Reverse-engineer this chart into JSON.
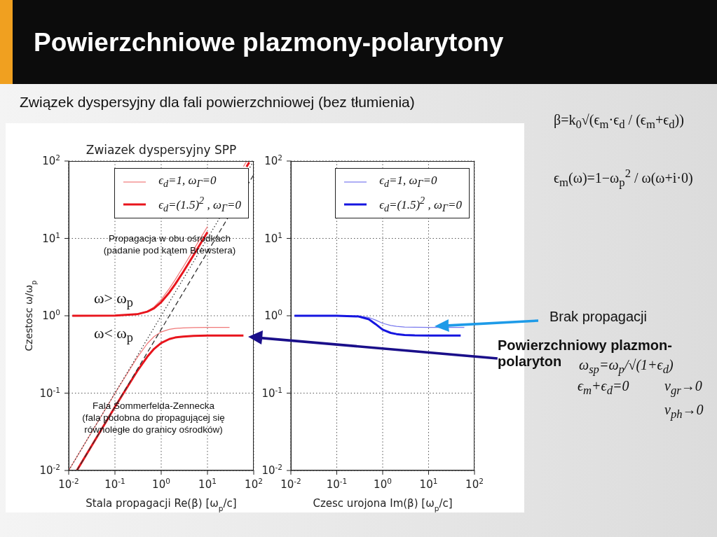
{
  "chart_data": [
    {
      "type": "line",
      "title": "Zwiazek dyspersyjny SPP",
      "xlabel": "Stala propagacji Re(β) [ω$_{p}$/c]",
      "ylabel": "Czestosc ω/ω$_{p}$",
      "log": "xy",
      "xlim": [
        0.01,
        100
      ],
      "ylim": [
        0.01,
        100
      ],
      "xticks": [
        {
          "value": 0.01,
          "label": "10$^{-2}$"
        },
        {
          "value": 0.1,
          "label": "10$^{-1}$"
        },
        {
          "value": 1,
          "label": "10$^{0}$"
        },
        {
          "value": 10,
          "label": "10$^{1}$"
        },
        {
          "value": 100,
          "label": "10$^{2}$"
        }
      ],
      "yticks": [
        {
          "value": 0.01,
          "label": "10$^{-2}$"
        },
        {
          "value": 0.1,
          "label": "10$^{-1}$"
        },
        {
          "value": 1,
          "label": "10$^{0}$"
        },
        {
          "value": 10,
          "label": "10$^{1}$"
        },
        {
          "value": 100,
          "label": "10$^{2}$"
        }
      ],
      "grid": true,
      "legend": "top right",
      "series": [
        {
          "name": "ϵ$_{d}$=1, ω$_{Γ}$=0",
          "color": "#f07878",
          "x": [
            0.012,
            0.1,
            0.3,
            0.5,
            0.7,
            1,
            1.5,
            2,
            3,
            5,
            10
          ],
          "values": [
            1.0,
            1.005,
            1.05,
            1.14,
            1.3,
            1.62,
            2.25,
            2.92,
            4.3,
            7.1,
            14.2
          ]
        },
        {
          "color": "#f07878",
          "x": [
            60,
            70
          ],
          "values": [
            84.8,
            99
          ]
        },
        {
          "color": "#f07878",
          "x": [
            0.01,
            0.1,
            0.3,
            0.5,
            0.7,
            1,
            1.5,
            2,
            3,
            5,
            10,
            30
          ],
          "values": [
            0.01,
            0.0995,
            0.286,
            0.437,
            0.538,
            0.618,
            0.667,
            0.685,
            0.697,
            0.704,
            0.706,
            0.707
          ]
        },
        {
          "name": "ϵ$_{d}$=(1.5)$^{2}$ , ω$_{Γ}$=0",
          "color": "#e8141c",
          "x": [
            0.012,
            0.1,
            0.3,
            0.5,
            0.7,
            1,
            1.5,
            2,
            3,
            5,
            10
          ],
          "values": [
            1.0,
            1.005,
            1.046,
            1.13,
            1.25,
            1.5,
            2.0,
            2.55,
            3.7,
            6.07,
            12.05
          ]
        },
        {
          "color": "#e8141c",
          "x": [
            70,
            80
          ],
          "values": [
            84.2,
            96.2
          ]
        },
        {
          "color": "#e8141c",
          "x": [
            0.015,
            0.1,
            0.3,
            0.5,
            0.7,
            1,
            1.5,
            2,
            3,
            5,
            10,
            60
          ],
          "values": [
            0.01,
            0.0663,
            0.191,
            0.295,
            0.373,
            0.445,
            0.5,
            0.523,
            0.539,
            0.55,
            0.554,
            0.555
          ]
        },
        {
          "color": "#333333",
          "line_style": "dotted",
          "x": [
            0.01,
            100
          ],
          "values": [
            0.01,
            100
          ]
        },
        {
          "color": "#333333",
          "line_style": "dashed",
          "x": [
            0.015,
            100
          ],
          "values": [
            0.01,
            66.7
          ]
        }
      ],
      "annotations": [
        "Powierzchniowe plazmony-polarytony",
        "Związek dyspersyjny dla fali powierzchniowej (bez tłumienia)",
        "ω> ω$_{p}$",
        "ω< ω$_{p}$",
        "Propagacja w obu ośrodkach\n(padanie pod kątem Brewstera)",
        "Fala Sommerfelda-Zennecka\n(fala podobna do propagującej się\nrównoległe do granicy ośrodków)"
      ]
    },
    {
      "type": "line",
      "xlabel": "Czesc urojona Im(β) [ω$_{p}$/c]",
      "log": "xy",
      "xlim": [
        0.01,
        100
      ],
      "ylim": [
        0.01,
        100
      ],
      "xticks": [
        {
          "value": 0.01,
          "label": "10$^{-2}$"
        },
        {
          "value": 0.1,
          "label": "10$^{-1}$"
        },
        {
          "value": 1,
          "label": "10$^{0}$"
        },
        {
          "value": 10,
          "label": "10$^{1}$"
        },
        {
          "value": 100,
          "label": "10$^{2}$"
        }
      ],
      "yticks": [
        {
          "value": 0.01,
          "label": "10$^{-2}$"
        },
        {
          "value": 0.1,
          "label": "10$^{-1}$"
        },
        {
          "value": 1,
          "label": "10$^{0}$"
        },
        {
          "value": 10,
          "label": "10$^{1}$"
        },
        {
          "value": 100,
          "label": "10$^{2}$"
        }
      ],
      "grid": true,
      "legend": "top right",
      "series": [
        {
          "name": "ϵ$_{d}$=1, ω$_{Γ}$=0",
          "color": "#7878ee",
          "x": [
            0.012,
            0.1,
            0.3,
            0.5,
            0.7,
            1,
            1.5,
            2,
            3,
            5,
            10,
            60
          ],
          "values": [
            1.0,
            1.0,
            0.99,
            0.95,
            0.88,
            0.8,
            0.75,
            0.73,
            0.715,
            0.71,
            0.707,
            0.707
          ]
        },
        {
          "name": "ϵ$_{d}$=(1.5)$^{2}$ , ω$_{Γ}$=0",
          "color": "#1515e0",
          "x": [
            0.012,
            0.1,
            0.3,
            0.5,
            0.7,
            1,
            1.5,
            2,
            3,
            5,
            10,
            50
          ],
          "values": [
            1.0,
            1.0,
            0.98,
            0.9,
            0.78,
            0.66,
            0.6,
            0.58,
            0.565,
            0.558,
            0.555,
            0.555
          ]
        }
      ],
      "annotations": [
        "β=k$_{0}$√(ϵ$_{m}$·ϵ$_{d}$ / (ϵ$_{m}$+ϵ$_{d}$))",
        "ϵ$_{m}$(ω)=1−ω$_{p}$$^{2}$ / ω(ω+i·0)",
        "Brak propagacji",
        "Powierzchniowy plazmon-polaryton",
        "ω$_{sp}$=ω$_{p}$/√(1+ϵ$_{d}$)",
        "ϵ$_{m}$+ϵ$_{d}$=0",
        "v$_{gr}$→0",
        "v$_{ph}$→0"
      ]
    }
  ]
}
